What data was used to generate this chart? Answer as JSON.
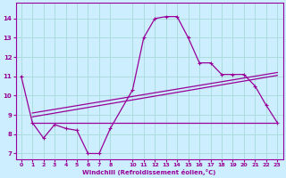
{
  "bg_color": "#cceeff",
  "grid_color": "#aadddd",
  "line_color": "#990099",
  "xlabel": "Windchill (Refroidissement éolien,°C)",
  "xlim": [
    -0.5,
    23.5
  ],
  "ylim": [
    6.7,
    14.8
  ],
  "yticks": [
    7,
    8,
    9,
    10,
    11,
    12,
    13,
    14
  ],
  "xticks": [
    0,
    1,
    2,
    3,
    4,
    5,
    6,
    7,
    8,
    10,
    11,
    12,
    13,
    14,
    15,
    16,
    17,
    18,
    19,
    20,
    21,
    22,
    23
  ],
  "line1_x": [
    0,
    1,
    2,
    3,
    4,
    5,
    6,
    7,
    8,
    10,
    11,
    12,
    13,
    14,
    15,
    16,
    17,
    18,
    19,
    20,
    21,
    22,
    23
  ],
  "line1_y": [
    11.0,
    8.6,
    7.8,
    8.5,
    8.3,
    8.2,
    7.0,
    7.0,
    8.3,
    10.3,
    13.0,
    14.0,
    14.1,
    14.1,
    13.0,
    11.7,
    11.7,
    11.1,
    11.1,
    11.1,
    10.5,
    9.5,
    8.6
  ],
  "line2_x": [
    1,
    10,
    23
  ],
  "line2_y": [
    8.6,
    8.6,
    8.6
  ],
  "line3_x": [
    1,
    23
  ],
  "line3_y": [
    9.1,
    11.2
  ],
  "line4_x": [
    1,
    23
  ],
  "line4_y": [
    8.9,
    11.05
  ]
}
